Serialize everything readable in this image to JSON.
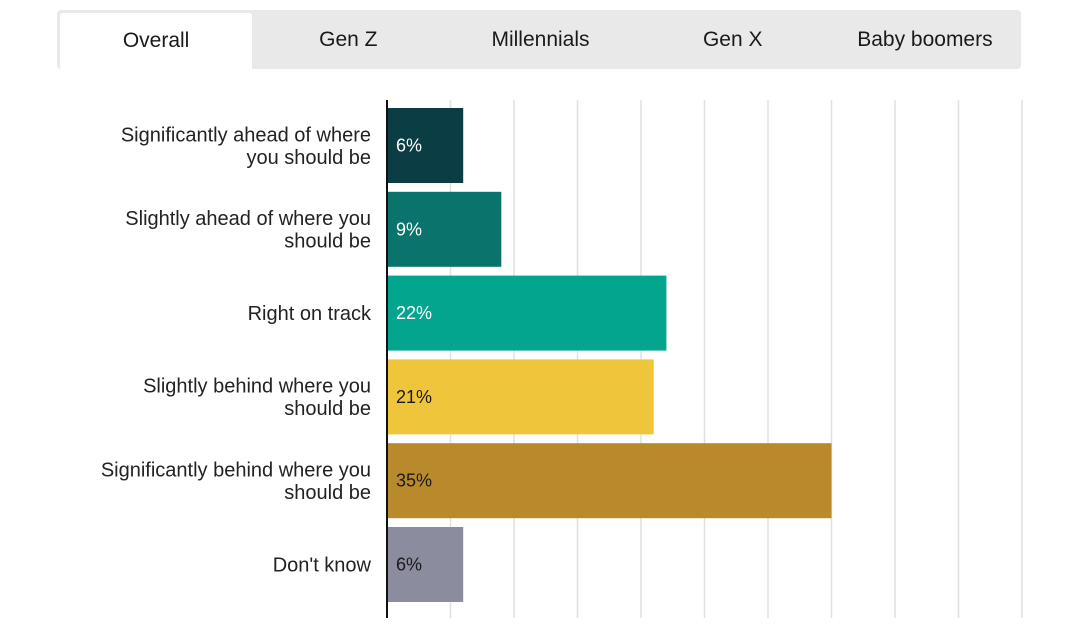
{
  "tabs": [
    {
      "label": "Overall",
      "active": true
    },
    {
      "label": "Gen Z",
      "active": false
    },
    {
      "label": "Millennials",
      "active": false
    },
    {
      "label": "Gen X",
      "active": false
    },
    {
      "label": "Baby boomers",
      "active": false
    }
  ],
  "chart_data": {
    "type": "bar",
    "orientation": "horizontal",
    "categories": [
      "Significantly ahead of where you should be",
      "Slightly ahead of where you should be",
      "Right on track",
      "Slightly behind where you should be",
      "Significantly behind where you should be",
      "Don't know"
    ],
    "values": [
      6,
      9,
      22,
      21,
      35,
      6
    ],
    "value_labels": [
      "6%",
      "9%",
      "22%",
      "21%",
      "35%",
      "6%"
    ],
    "colors": [
      "#0b3d44",
      "#0a736c",
      "#04a58f",
      "#efc53c",
      "#b88a2c",
      "#8b8c9e"
    ],
    "label_colors": [
      "#ffffff",
      "#ffffff",
      "#ffffff",
      "#1a1a1a",
      "#1a1a1a",
      "#1a1a1a"
    ],
    "xlim": [
      0,
      50
    ],
    "grid": true,
    "title": "",
    "xlabel": "",
    "ylabel": ""
  }
}
